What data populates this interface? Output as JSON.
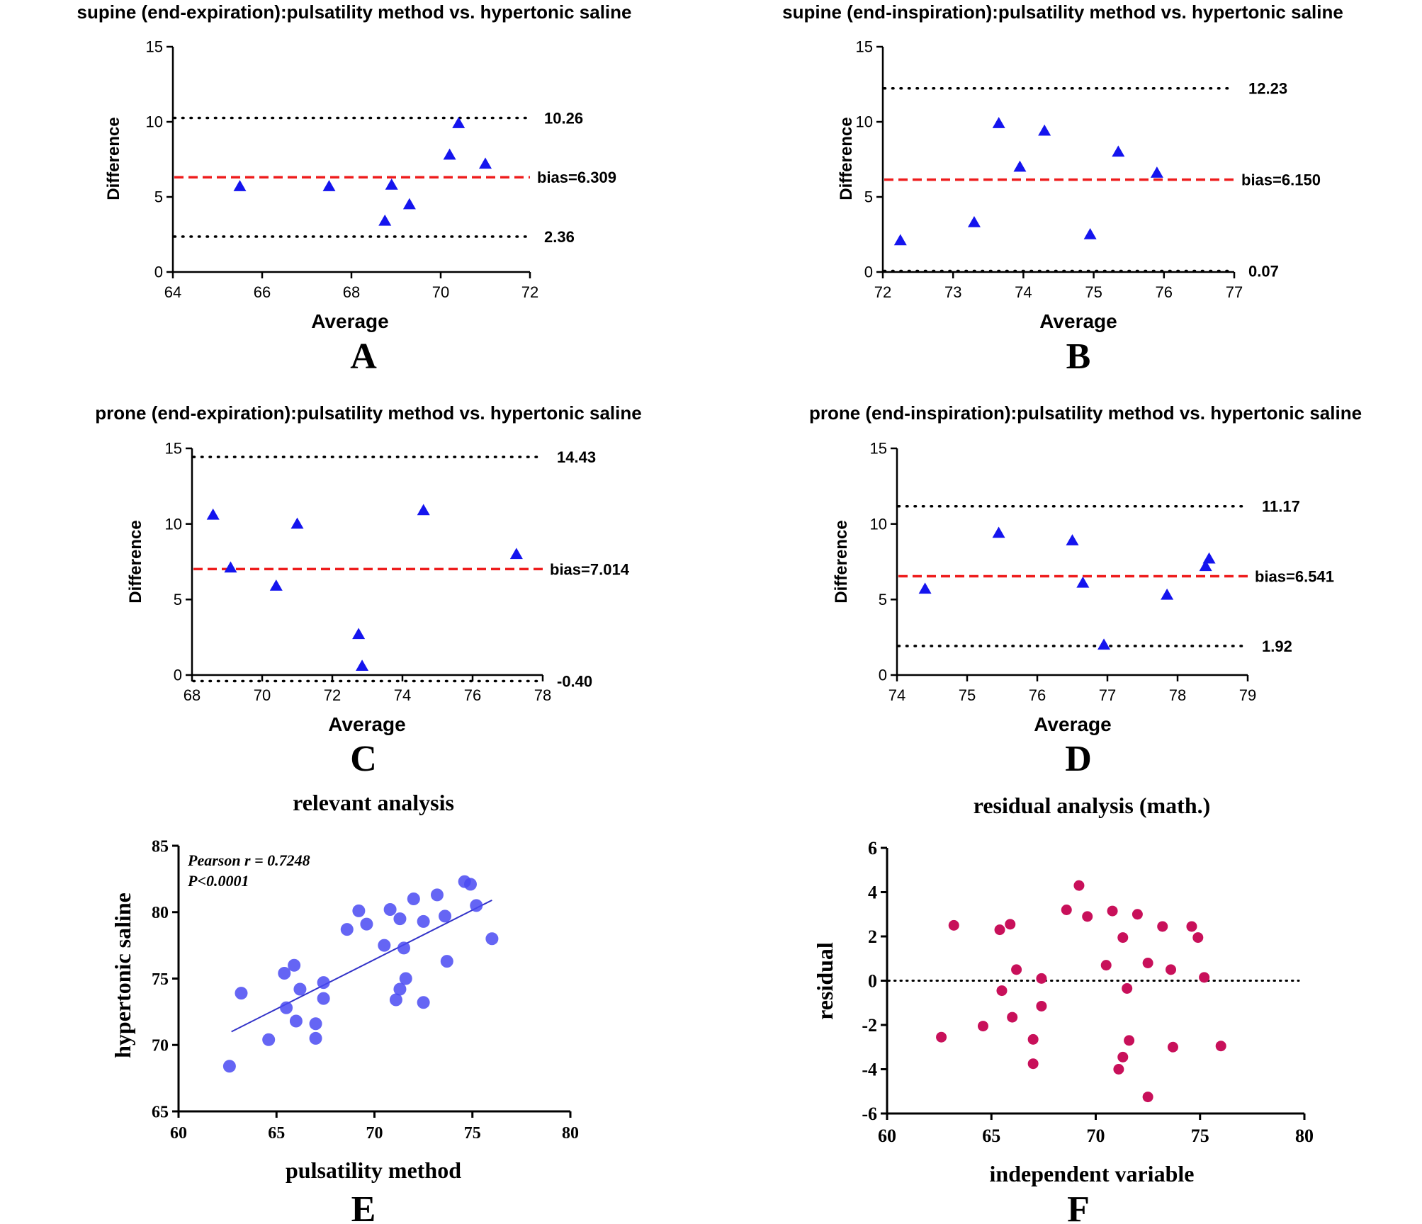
{
  "colors": {
    "axis": "#000000",
    "bias_line": "#ee1c1c",
    "triangle": "#1414ee",
    "scatter": "#4a4af2",
    "fit_line": "#3232c8",
    "residual": "#c8105a"
  },
  "chart_data": [
    {
      "id": "A",
      "type": "scatter",
      "marker": "triangle",
      "panel_letter": "A",
      "title": "supine (end-expiration):pulsatility method vs. hypertonic saline",
      "xlabel": "Average",
      "ylabel": "Difference",
      "xlim": [
        64,
        72
      ],
      "ylim": [
        0,
        15
      ],
      "xticks": [
        "64",
        "66",
        "68",
        "70",
        "72"
      ],
      "yticks": [
        "0",
        "5",
        "10",
        "15"
      ],
      "points": [
        [
          65.5,
          5.7
        ],
        [
          67.5,
          5.7
        ],
        [
          68.75,
          3.4
        ],
        [
          68.9,
          5.8
        ],
        [
          69.3,
          4.5
        ],
        [
          70.2,
          7.8
        ],
        [
          70.4,
          9.9
        ],
        [
          71.0,
          7.2
        ]
      ],
      "bias": {
        "value": 6.309,
        "label": "bias=6.309"
      },
      "limits": [
        {
          "value": 10.26,
          "label": "10.26"
        },
        {
          "value": 2.36,
          "label": "2.36"
        }
      ]
    },
    {
      "id": "B",
      "type": "scatter",
      "marker": "triangle",
      "panel_letter": "B",
      "title": "supine (end-inspiration):pulsatility method vs. hypertonic saline",
      "xlabel": "Average",
      "ylabel": "Difference",
      "xlim": [
        72,
        77
      ],
      "ylim": [
        0,
        15
      ],
      "xticks": [
        "72",
        "73",
        "74",
        "75",
        "76",
        "77"
      ],
      "yticks": [
        "0",
        "5",
        "10",
        "15"
      ],
      "points": [
        [
          72.25,
          2.1
        ],
        [
          73.3,
          3.3
        ],
        [
          73.65,
          9.9
        ],
        [
          73.95,
          7.0
        ],
        [
          74.3,
          9.4
        ],
        [
          74.95,
          2.5
        ],
        [
          75.35,
          8.0
        ],
        [
          75.9,
          6.6
        ]
      ],
      "bias": {
        "value": 6.15,
        "label": "bias=6.150"
      },
      "limits": [
        {
          "value": 12.23,
          "label": "12.23"
        },
        {
          "value": 0.07,
          "label": "0.07"
        }
      ]
    },
    {
      "id": "C",
      "type": "scatter",
      "marker": "triangle",
      "panel_letter": "C",
      "title": "prone (end-expiration):pulsatility method vs. hypertonic saline",
      "xlabel": "Average",
      "ylabel": "Difference",
      "xlim": [
        68,
        78
      ],
      "ylim": [
        0,
        15
      ],
      "xticks": [
        "68",
        "70",
        "72",
        "74",
        "76",
        "78"
      ],
      "yticks": [
        "0",
        "5",
        "10",
        "15"
      ],
      "points": [
        [
          68.6,
          10.6
        ],
        [
          69.1,
          7.1
        ],
        [
          70.4,
          5.9
        ],
        [
          71.0,
          10.0
        ],
        [
          72.75,
          2.7
        ],
        [
          72.85,
          0.6
        ],
        [
          74.6,
          10.9
        ],
        [
          77.25,
          8.0
        ]
      ],
      "bias": {
        "value": 7.014,
        "label": "bias=7.014"
      },
      "limits": [
        {
          "value": 14.43,
          "label": "14.43"
        },
        {
          "value": -0.4,
          "label": "-0.40"
        }
      ]
    },
    {
      "id": "D",
      "type": "scatter",
      "marker": "triangle",
      "panel_letter": "D",
      "title": "prone (end-inspiration):pulsatility method vs. hypertonic saline",
      "xlabel": "Average",
      "ylabel": "Difference",
      "xlim": [
        74,
        79
      ],
      "ylim": [
        0,
        15
      ],
      "xticks": [
        "74",
        "75",
        "76",
        "77",
        "78",
        "79"
      ],
      "yticks": [
        "0",
        "5",
        "10",
        "15"
      ],
      "points": [
        [
          74.4,
          5.7
        ],
        [
          75.45,
          9.4
        ],
        [
          76.5,
          8.9
        ],
        [
          76.65,
          6.1
        ],
        [
          76.95,
          2.0
        ],
        [
          77.85,
          5.3
        ],
        [
          78.4,
          7.2
        ],
        [
          78.45,
          7.7
        ]
      ],
      "bias": {
        "value": 6.541,
        "label": "bias=6.541"
      },
      "limits": [
        {
          "value": 11.17,
          "label": "11.17"
        },
        {
          "value": 1.92,
          "label": "1.92"
        }
      ]
    },
    {
      "id": "E",
      "type": "scatter",
      "marker": "circle",
      "panel_letter": "E",
      "title": "relevant analysis",
      "xlabel": "pulsatility method",
      "ylabel": "hypertonic saline",
      "xlim": [
        60,
        80
      ],
      "ylim": [
        65,
        85
      ],
      "xticks": [
        "60",
        "65",
        "70",
        "75",
        "80"
      ],
      "yticks": [
        "65",
        "70",
        "75",
        "80",
        "85"
      ],
      "annotation": [
        "Pearson r = 0.7248",
        "P<0.0001"
      ],
      "fit_line": [
        [
          62.7,
          71.0
        ],
        [
          76.0,
          80.9
        ]
      ],
      "points": [
        [
          62.6,
          68.4
        ],
        [
          63.2,
          73.9
        ],
        [
          64.6,
          70.4
        ],
        [
          65.4,
          75.4
        ],
        [
          65.5,
          72.8
        ],
        [
          65.9,
          76.0
        ],
        [
          66.0,
          71.8
        ],
        [
          66.2,
          74.2
        ],
        [
          67.0,
          70.5
        ],
        [
          67.0,
          71.6
        ],
        [
          67.4,
          74.7
        ],
        [
          67.4,
          73.5
        ],
        [
          68.6,
          78.7
        ],
        [
          69.2,
          80.1
        ],
        [
          69.6,
          79.1
        ],
        [
          70.5,
          77.5
        ],
        [
          70.8,
          80.2
        ],
        [
          71.1,
          73.4
        ],
        [
          71.3,
          74.2
        ],
        [
          71.3,
          79.5
        ],
        [
          71.5,
          77.3
        ],
        [
          71.6,
          75.0
        ],
        [
          72.0,
          81.0
        ],
        [
          72.5,
          79.3
        ],
        [
          72.5,
          73.2
        ],
        [
          73.2,
          81.3
        ],
        [
          73.6,
          79.7
        ],
        [
          73.7,
          76.3
        ],
        [
          74.6,
          82.3
        ],
        [
          74.9,
          82.1
        ],
        [
          75.2,
          80.5
        ],
        [
          76.0,
          78.0
        ]
      ]
    },
    {
      "id": "F",
      "type": "scatter",
      "marker": "circle",
      "panel_letter": "F",
      "title": "residual analysis (math.)",
      "xlabel": "independent variable",
      "ylabel": "residual",
      "xlim": [
        60,
        80
      ],
      "ylim": [
        -6,
        6
      ],
      "xticks": [
        "60",
        "65",
        "70",
        "75",
        "80"
      ],
      "yticks": [
        "-6",
        "-4",
        "-2",
        "0",
        "2",
        "4",
        "6"
      ],
      "zero_line": 0,
      "points": [
        [
          62.6,
          -2.55
        ],
        [
          63.2,
          2.5
        ],
        [
          64.6,
          -2.05
        ],
        [
          65.4,
          2.3
        ],
        [
          65.5,
          -0.45
        ],
        [
          65.9,
          2.55
        ],
        [
          66.0,
          -1.65
        ],
        [
          66.2,
          0.5
        ],
        [
          67.0,
          -2.65
        ],
        [
          67.0,
          -3.75
        ],
        [
          67.4,
          0.1
        ],
        [
          67.4,
          -1.15
        ],
        [
          68.6,
          3.2
        ],
        [
          69.2,
          4.3
        ],
        [
          69.6,
          2.9
        ],
        [
          70.5,
          0.7
        ],
        [
          70.8,
          3.15
        ],
        [
          71.1,
          -4.0
        ],
        [
          71.3,
          1.95
        ],
        [
          71.3,
          -3.45
        ],
        [
          71.5,
          -0.35
        ],
        [
          71.6,
          -2.7
        ],
        [
          72.0,
          3.0
        ],
        [
          72.5,
          0.8
        ],
        [
          72.5,
          -5.25
        ],
        [
          73.2,
          2.45
        ],
        [
          73.6,
          0.5
        ],
        [
          73.7,
          -3.0
        ],
        [
          74.6,
          2.45
        ],
        [
          74.9,
          1.95
        ],
        [
          75.2,
          0.15
        ],
        [
          76.0,
          -2.95
        ]
      ]
    }
  ]
}
